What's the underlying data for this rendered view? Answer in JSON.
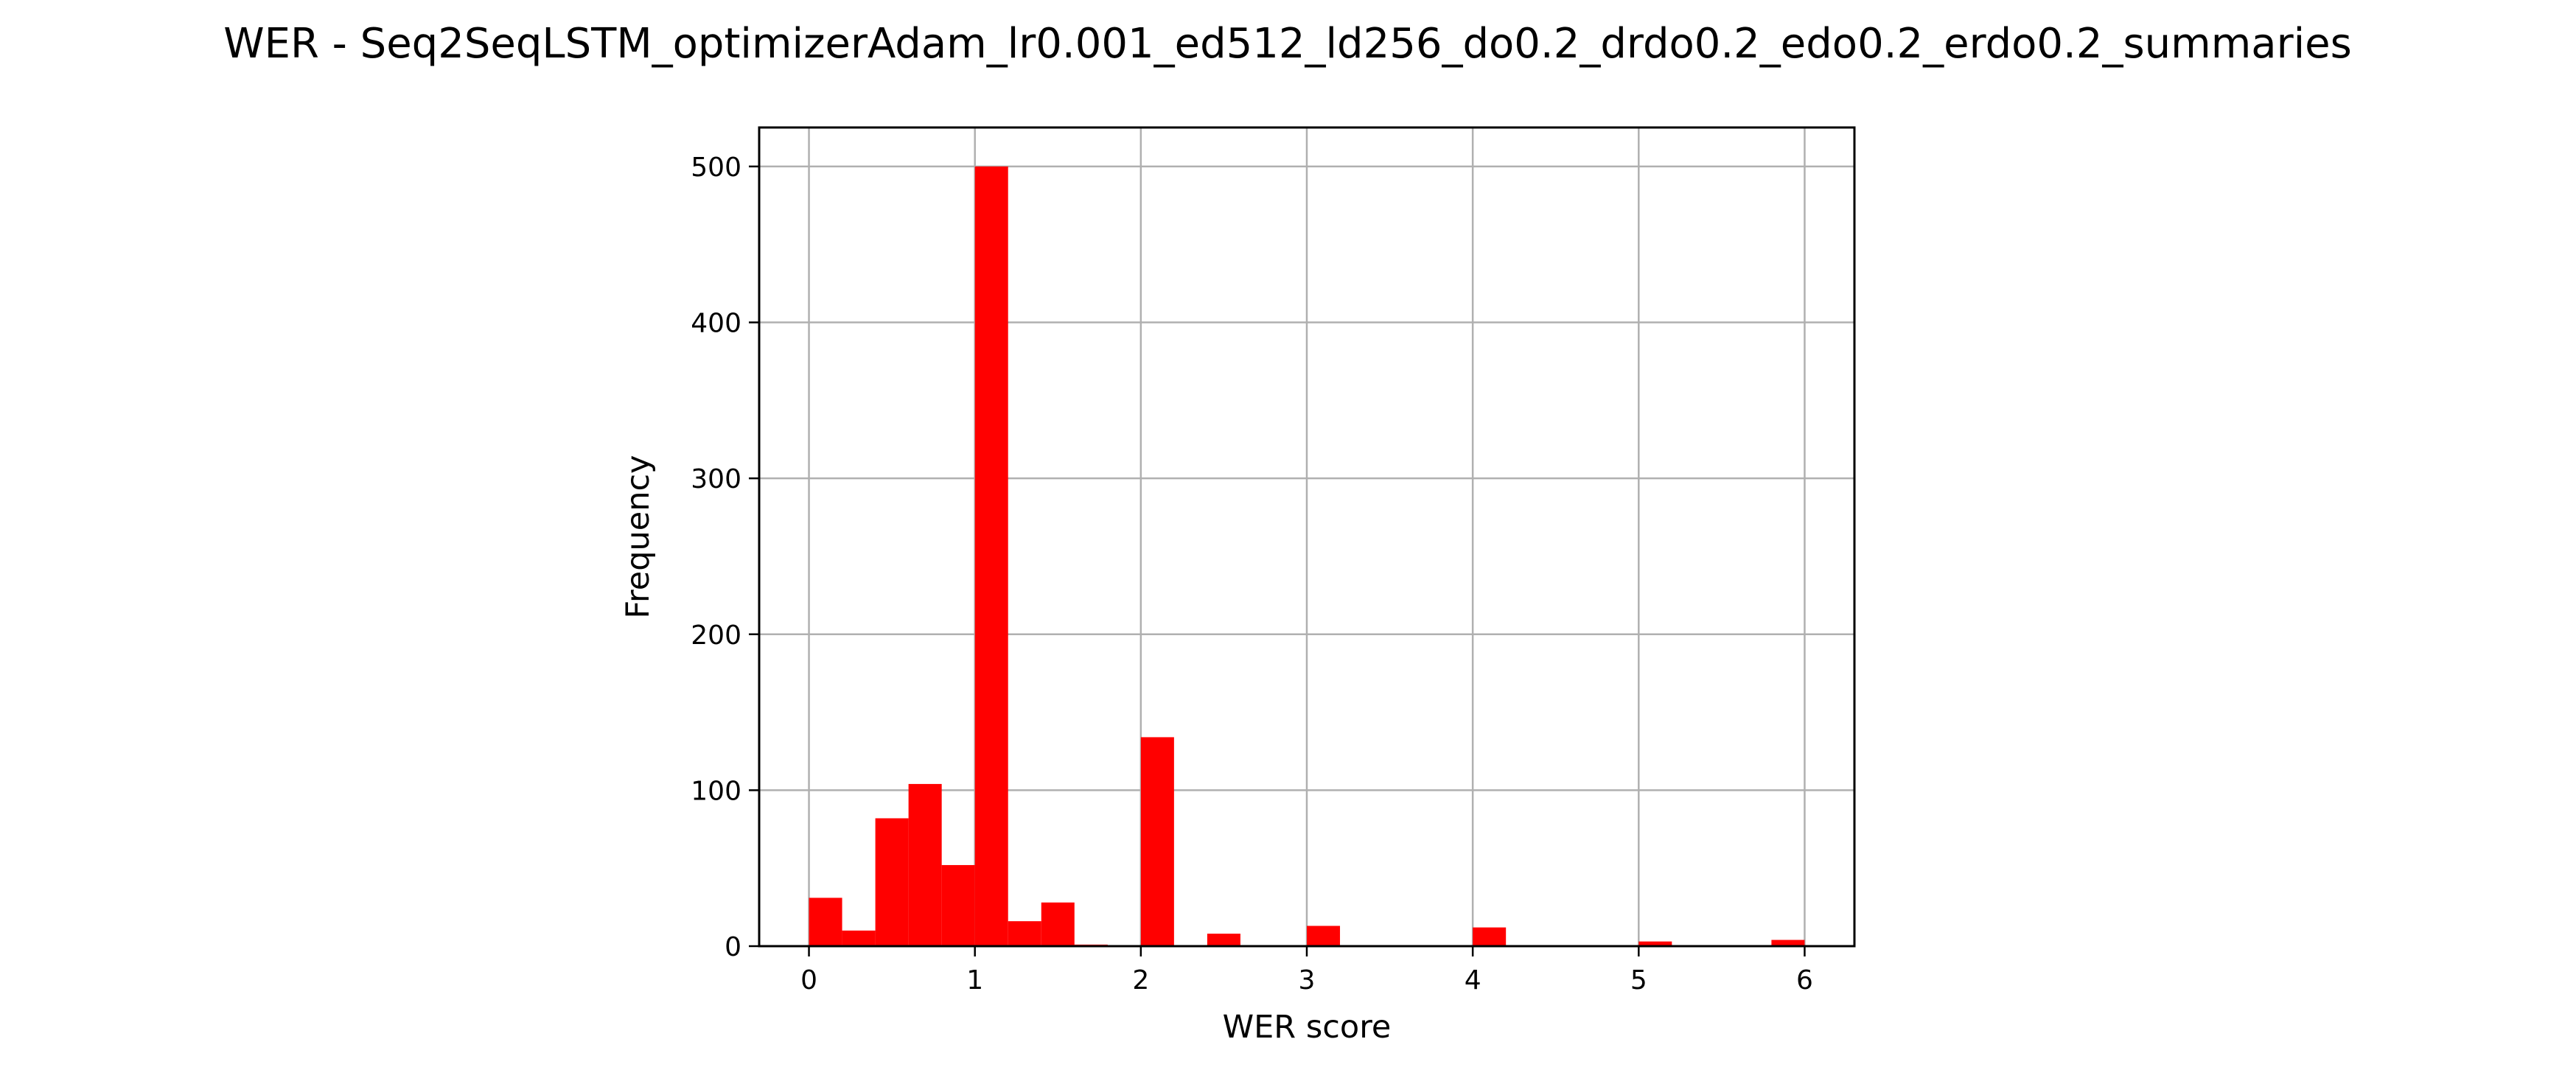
{
  "chart_data": {
    "type": "bar",
    "title": "WER - Seq2SeqLSTM_optimizerAdam_lr0.001_ed512_ld256_do0.2_drdo0.2_edo0.2_erdo0.2_summaries",
    "xlabel": "WER score",
    "ylabel": "Frequency",
    "xlim": [
      -0.3,
      6.3
    ],
    "ylim": [
      0,
      525
    ],
    "xticks": [
      0,
      1,
      2,
      3,
      4,
      5,
      6
    ],
    "yticks": [
      0,
      100,
      200,
      300,
      400,
      500
    ],
    "grid": true,
    "bar_color": "#ff0000",
    "bins": [
      {
        "x0": 0.0,
        "x1": 0.2,
        "value": 31
      },
      {
        "x0": 0.2,
        "x1": 0.4,
        "value": 10
      },
      {
        "x0": 0.4,
        "x1": 0.6,
        "value": 82
      },
      {
        "x0": 0.6,
        "x1": 0.8,
        "value": 104
      },
      {
        "x0": 0.8,
        "x1": 1.0,
        "value": 52
      },
      {
        "x0": 1.0,
        "x1": 1.2,
        "value": 500
      },
      {
        "x0": 1.2,
        "x1": 1.4,
        "value": 16
      },
      {
        "x0": 1.4,
        "x1": 1.6,
        "value": 28
      },
      {
        "x0": 1.6,
        "x1": 1.8,
        "value": 1
      },
      {
        "x0": 1.8,
        "x1": 2.0,
        "value": 0
      },
      {
        "x0": 2.0,
        "x1": 2.2,
        "value": 134
      },
      {
        "x0": 2.2,
        "x1": 2.4,
        "value": 0
      },
      {
        "x0": 2.4,
        "x1": 2.6,
        "value": 8
      },
      {
        "x0": 2.6,
        "x1": 2.8,
        "value": 0
      },
      {
        "x0": 2.8,
        "x1": 3.0,
        "value": 0
      },
      {
        "x0": 3.0,
        "x1": 3.2,
        "value": 13
      },
      {
        "x0": 3.2,
        "x1": 3.4,
        "value": 0
      },
      {
        "x0": 3.4,
        "x1": 3.6,
        "value": 0
      },
      {
        "x0": 3.6,
        "x1": 3.8,
        "value": 0
      },
      {
        "x0": 3.8,
        "x1": 4.0,
        "value": 0
      },
      {
        "x0": 4.0,
        "x1": 4.2,
        "value": 12
      },
      {
        "x0": 4.2,
        "x1": 4.4,
        "value": 0
      },
      {
        "x0": 4.4,
        "x1": 4.6,
        "value": 0
      },
      {
        "x0": 4.6,
        "x1": 4.8,
        "value": 0
      },
      {
        "x0": 4.8,
        "x1": 5.0,
        "value": 0
      },
      {
        "x0": 5.0,
        "x1": 5.2,
        "value": 3
      },
      {
        "x0": 5.2,
        "x1": 5.4,
        "value": 0
      },
      {
        "x0": 5.4,
        "x1": 5.6,
        "value": 0
      },
      {
        "x0": 5.6,
        "x1": 5.8,
        "value": 0
      },
      {
        "x0": 5.8,
        "x1": 6.0,
        "value": 4
      }
    ]
  }
}
